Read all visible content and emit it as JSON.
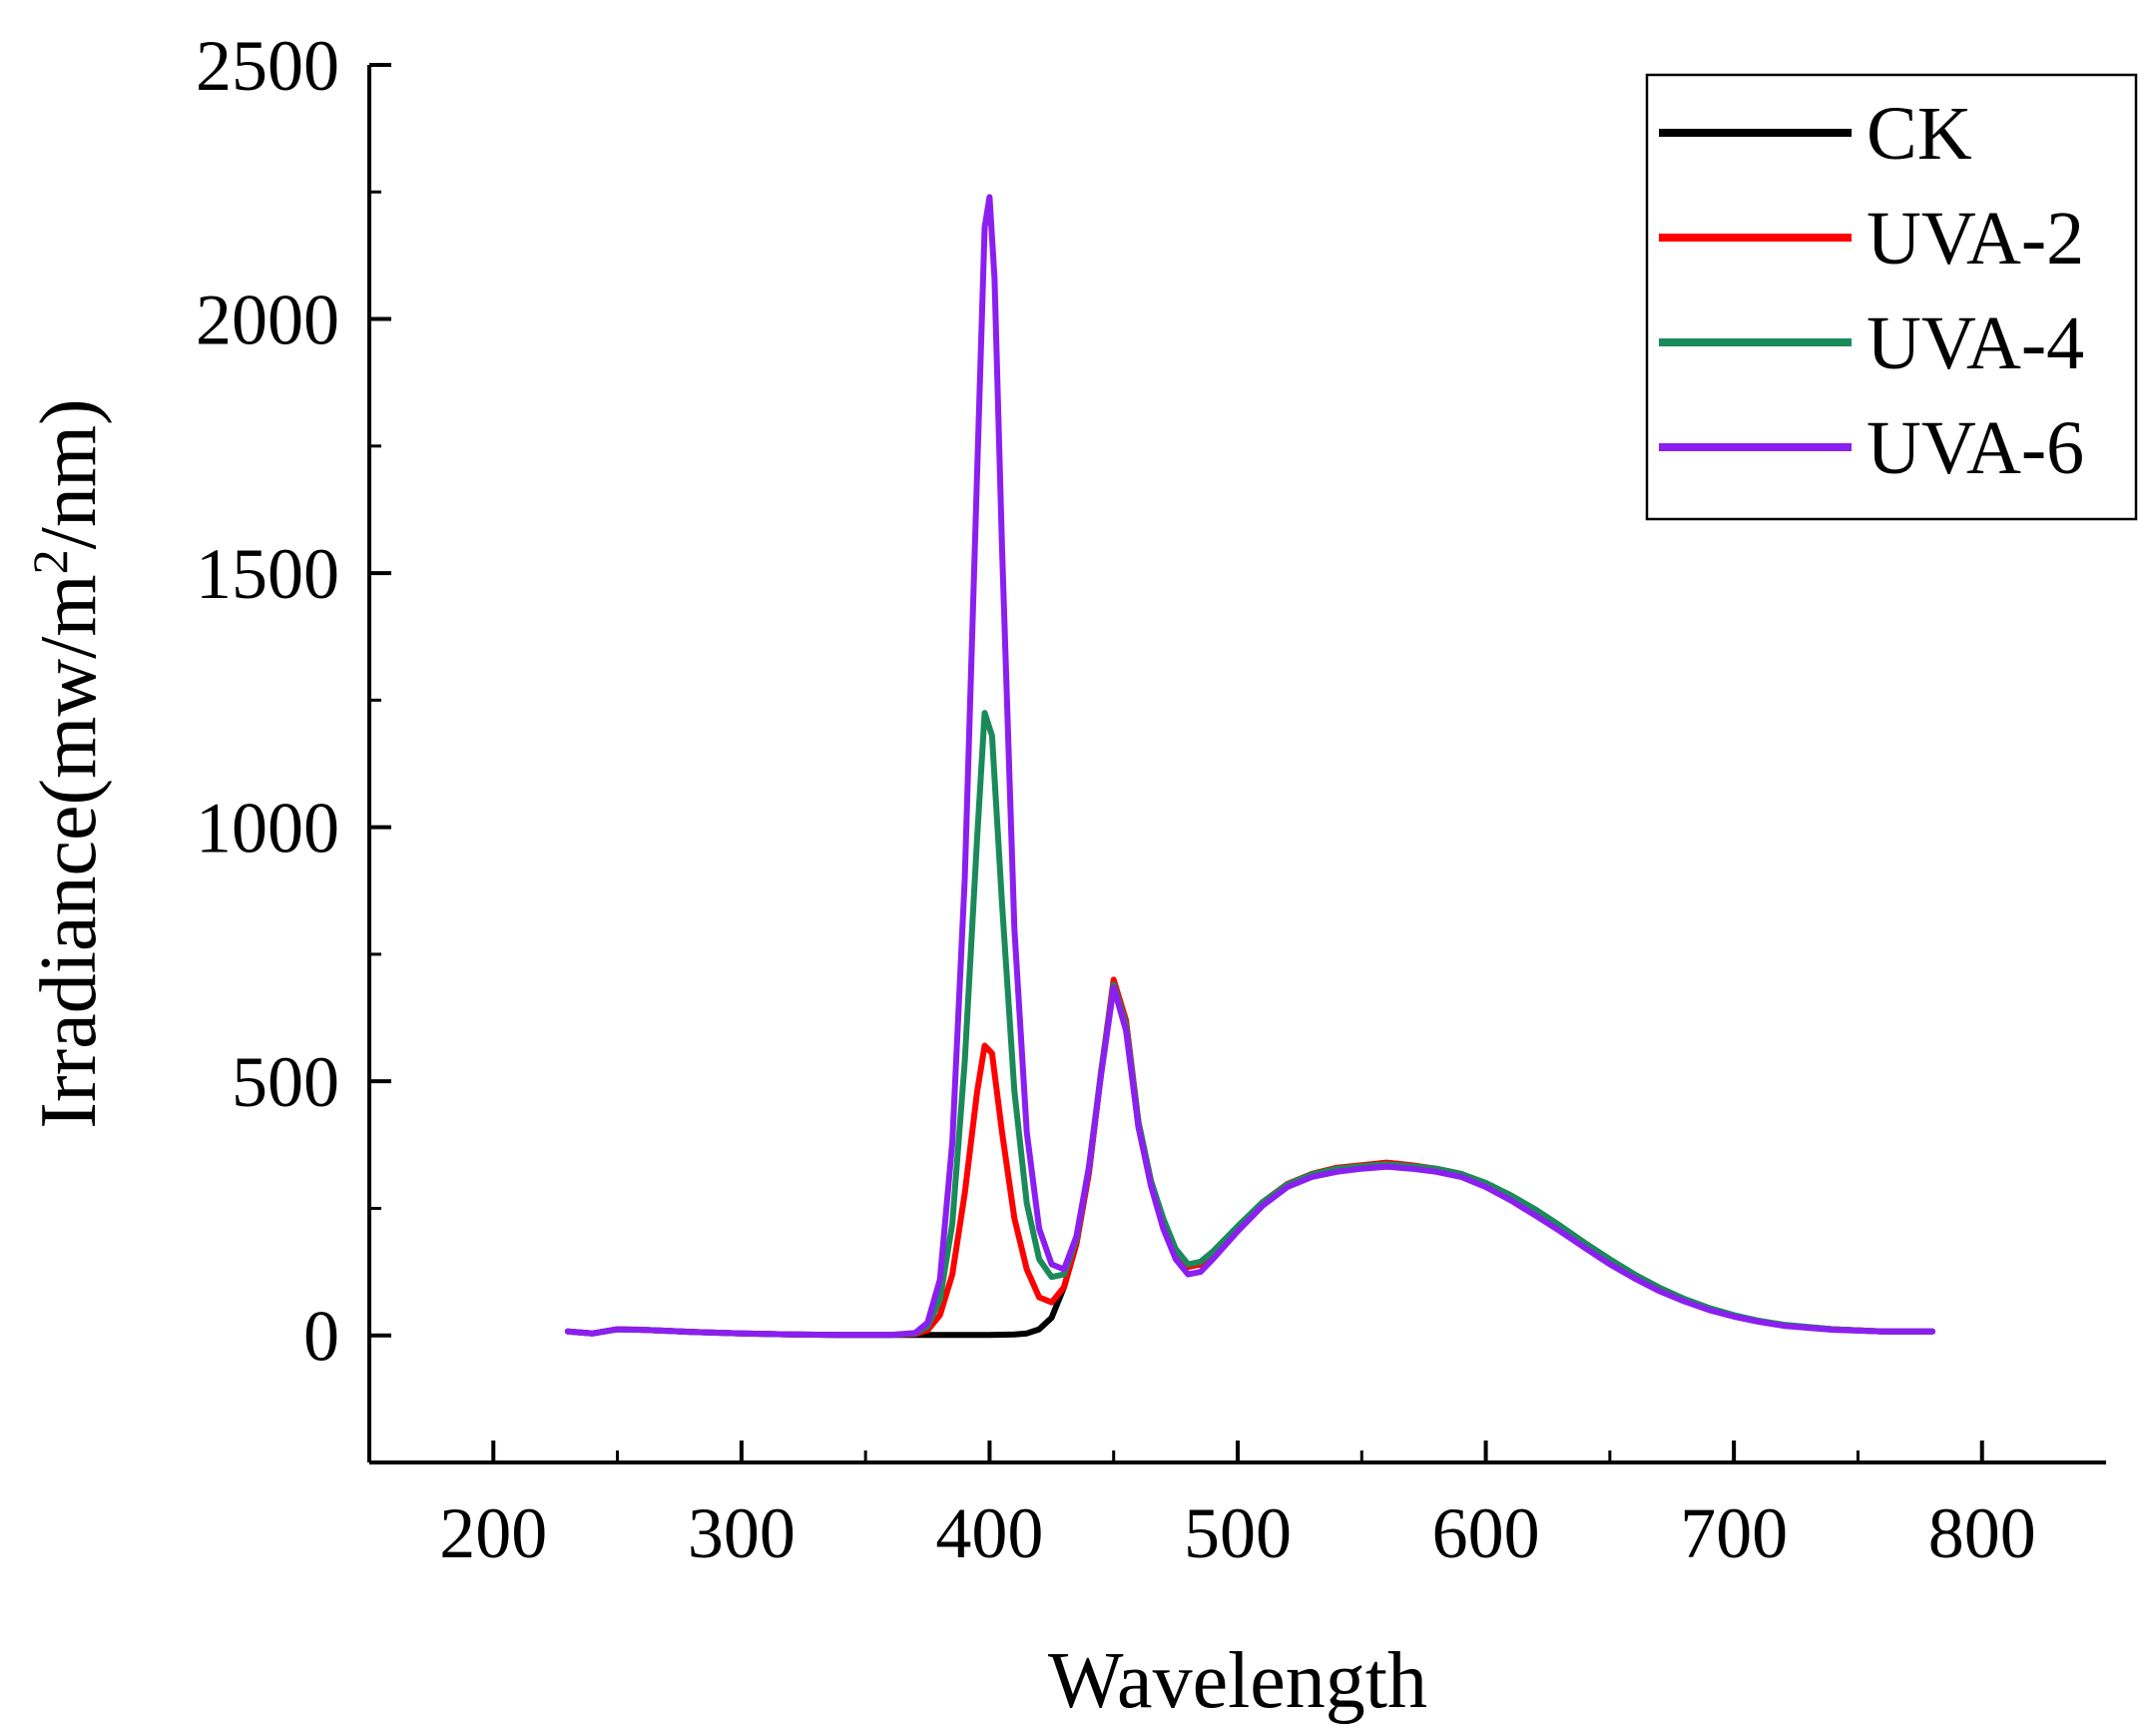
{
  "chart_data": {
    "type": "line",
    "title": "",
    "xlabel": "Wavelength",
    "ylabel_main": "Irradiance(mw/m",
    "ylabel_sup": "2",
    "ylabel_end": "/nm)",
    "xlim": [
      150,
      850
    ],
    "ylim": [
      -250,
      2500
    ],
    "xticks": [
      200,
      300,
      400,
      500,
      600,
      700,
      800
    ],
    "yticks": [
      0,
      500,
      1000,
      1500,
      2000,
      2500
    ],
    "legend_position": "top-right",
    "series": [
      {
        "name": "CK",
        "color": "#000000",
        "points": [
          [
            230,
            8
          ],
          [
            240,
            4
          ],
          [
            250,
            12
          ],
          [
            260,
            11
          ],
          [
            270,
            9
          ],
          [
            280,
            7
          ],
          [
            300,
            4
          ],
          [
            320,
            2
          ],
          [
            340,
            1
          ],
          [
            360,
            1
          ],
          [
            370,
            1
          ],
          [
            380,
            1
          ],
          [
            390,
            1
          ],
          [
            400,
            1
          ],
          [
            410,
            2
          ],
          [
            415,
            4
          ],
          [
            420,
            12
          ],
          [
            425,
            35
          ],
          [
            430,
            95
          ],
          [
            435,
            180
          ],
          [
            440,
            320
          ],
          [
            445,
            520
          ],
          [
            450,
            690
          ],
          [
            455,
            610
          ],
          [
            460,
            410
          ],
          [
            465,
            300
          ],
          [
            470,
            220
          ],
          [
            475,
            160
          ],
          [
            480,
            135
          ],
          [
            485,
            140
          ],
          [
            490,
            160
          ],
          [
            500,
            210
          ],
          [
            510,
            260
          ],
          [
            520,
            295
          ],
          [
            530,
            315
          ],
          [
            540,
            325
          ],
          [
            550,
            330
          ],
          [
            560,
            335
          ],
          [
            570,
            330
          ],
          [
            580,
            325
          ],
          [
            590,
            315
          ],
          [
            600,
            295
          ],
          [
            610,
            270
          ],
          [
            620,
            240
          ],
          [
            630,
            210
          ],
          [
            640,
            175
          ],
          [
            650,
            145
          ],
          [
            660,
            115
          ],
          [
            670,
            90
          ],
          [
            680,
            70
          ],
          [
            690,
            52
          ],
          [
            700,
            38
          ],
          [
            710,
            28
          ],
          [
            720,
            20
          ],
          [
            740,
            12
          ],
          [
            760,
            8
          ],
          [
            780,
            8
          ]
        ]
      },
      {
        "name": "UVA-2",
        "color": "#ff0000",
        "points": [
          [
            230,
            8
          ],
          [
            240,
            4
          ],
          [
            250,
            12
          ],
          [
            260,
            11
          ],
          [
            270,
            9
          ],
          [
            280,
            7
          ],
          [
            300,
            4
          ],
          [
            320,
            2
          ],
          [
            340,
            1
          ],
          [
            360,
            1
          ],
          [
            370,
            3
          ],
          [
            375,
            10
          ],
          [
            380,
            40
          ],
          [
            385,
            120
          ],
          [
            390,
            280
          ],
          [
            395,
            480
          ],
          [
            398,
            570
          ],
          [
            401,
            555
          ],
          [
            405,
            400
          ],
          [
            410,
            230
          ],
          [
            415,
            130
          ],
          [
            420,
            75
          ],
          [
            425,
            65
          ],
          [
            430,
            95
          ],
          [
            435,
            180
          ],
          [
            440,
            320
          ],
          [
            445,
            520
          ],
          [
            450,
            700
          ],
          [
            455,
            620
          ],
          [
            460,
            420
          ],
          [
            465,
            305
          ],
          [
            470,
            225
          ],
          [
            475,
            165
          ],
          [
            480,
            135
          ],
          [
            485,
            140
          ],
          [
            490,
            160
          ],
          [
            500,
            210
          ],
          [
            510,
            262
          ],
          [
            520,
            298
          ],
          [
            530,
            318
          ],
          [
            540,
            330
          ],
          [
            550,
            335
          ],
          [
            560,
            340
          ],
          [
            570,
            335
          ],
          [
            580,
            328
          ],
          [
            590,
            318
          ],
          [
            600,
            298
          ],
          [
            610,
            272
          ],
          [
            620,
            242
          ],
          [
            630,
            210
          ],
          [
            640,
            175
          ],
          [
            650,
            145
          ],
          [
            660,
            115
          ],
          [
            670,
            90
          ],
          [
            680,
            70
          ],
          [
            690,
            52
          ],
          [
            700,
            38
          ],
          [
            710,
            28
          ],
          [
            720,
            20
          ],
          [
            740,
            12
          ],
          [
            760,
            8
          ],
          [
            780,
            8
          ]
        ]
      },
      {
        "name": "UVA-4",
        "color": "#1b8a5a",
        "points": [
          [
            230,
            8
          ],
          [
            240,
            4
          ],
          [
            250,
            12
          ],
          [
            260,
            11
          ],
          [
            270,
            9
          ],
          [
            280,
            7
          ],
          [
            300,
            4
          ],
          [
            320,
            2
          ],
          [
            340,
            1
          ],
          [
            360,
            1
          ],
          [
            370,
            4
          ],
          [
            375,
            18
          ],
          [
            380,
            70
          ],
          [
            385,
            220
          ],
          [
            390,
            540
          ],
          [
            395,
            980
          ],
          [
            398,
            1225
          ],
          [
            401,
            1180
          ],
          [
            405,
            850
          ],
          [
            410,
            480
          ],
          [
            415,
            260
          ],
          [
            420,
            150
          ],
          [
            425,
            115
          ],
          [
            430,
            120
          ],
          [
            435,
            190
          ],
          [
            440,
            330
          ],
          [
            445,
            520
          ],
          [
            450,
            690
          ],
          [
            455,
            610
          ],
          [
            460,
            420
          ],
          [
            465,
            305
          ],
          [
            470,
            230
          ],
          [
            475,
            170
          ],
          [
            480,
            140
          ],
          [
            485,
            145
          ],
          [
            490,
            165
          ],
          [
            500,
            215
          ],
          [
            510,
            262
          ],
          [
            520,
            297
          ],
          [
            530,
            317
          ],
          [
            540,
            328
          ],
          [
            550,
            333
          ],
          [
            560,
            337
          ],
          [
            570,
            333
          ],
          [
            580,
            328
          ],
          [
            590,
            318
          ],
          [
            600,
            300
          ],
          [
            610,
            276
          ],
          [
            620,
            248
          ],
          [
            630,
            216
          ],
          [
            640,
            182
          ],
          [
            650,
            150
          ],
          [
            660,
            120
          ],
          [
            670,
            94
          ],
          [
            680,
            72
          ],
          [
            690,
            54
          ],
          [
            700,
            40
          ],
          [
            710,
            29
          ],
          [
            720,
            21
          ],
          [
            740,
            12
          ],
          [
            760,
            8
          ],
          [
            780,
            8
          ]
        ]
      },
      {
        "name": "UVA-6",
        "color": "#8b1ff0",
        "points": [
          [
            230,
            8
          ],
          [
            240,
            4
          ],
          [
            250,
            12
          ],
          [
            260,
            11
          ],
          [
            270,
            9
          ],
          [
            280,
            7
          ],
          [
            300,
            4
          ],
          [
            320,
            2
          ],
          [
            340,
            1
          ],
          [
            360,
            1
          ],
          [
            370,
            5
          ],
          [
            375,
            25
          ],
          [
            380,
            110
          ],
          [
            385,
            380
          ],
          [
            390,
            900
          ],
          [
            395,
            1700
          ],
          [
            398,
            2180
          ],
          [
            400,
            2240
          ],
          [
            402,
            2080
          ],
          [
            405,
            1550
          ],
          [
            410,
            800
          ],
          [
            415,
            400
          ],
          [
            420,
            210
          ],
          [
            425,
            140
          ],
          [
            430,
            130
          ],
          [
            435,
            195
          ],
          [
            440,
            330
          ],
          [
            445,
            515
          ],
          [
            450,
            685
          ],
          [
            455,
            600
          ],
          [
            460,
            410
          ],
          [
            465,
            295
          ],
          [
            470,
            210
          ],
          [
            475,
            150
          ],
          [
            480,
            120
          ],
          [
            485,
            125
          ],
          [
            490,
            150
          ],
          [
            500,
            205
          ],
          [
            510,
            255
          ],
          [
            520,
            292
          ],
          [
            530,
            312
          ],
          [
            540,
            322
          ],
          [
            550,
            328
          ],
          [
            560,
            332
          ],
          [
            570,
            328
          ],
          [
            580,
            322
          ],
          [
            590,
            312
          ],
          [
            600,
            292
          ],
          [
            610,
            266
          ],
          [
            620,
            236
          ],
          [
            630,
            205
          ],
          [
            640,
            172
          ],
          [
            650,
            140
          ],
          [
            660,
            112
          ],
          [
            670,
            87
          ],
          [
            680,
            67
          ],
          [
            690,
            50
          ],
          [
            700,
            37
          ],
          [
            710,
            27
          ],
          [
            720,
            19
          ],
          [
            740,
            11
          ],
          [
            760,
            8
          ],
          [
            780,
            8
          ]
        ]
      }
    ]
  }
}
